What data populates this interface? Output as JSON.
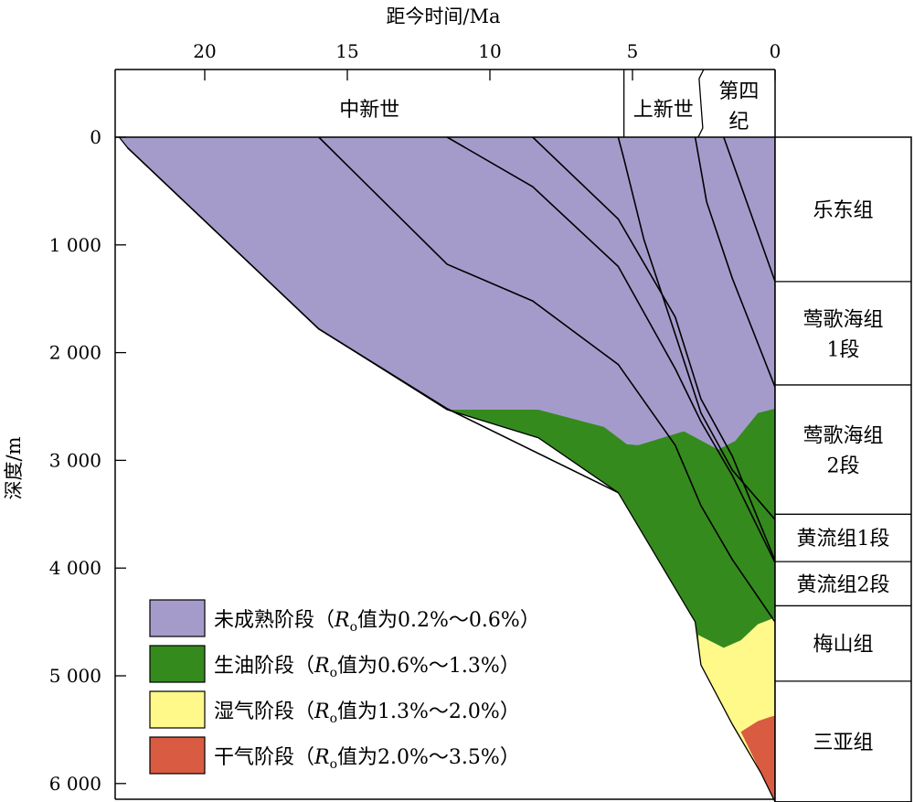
{
  "chart_data": {
    "type": "area",
    "title": "",
    "xlabel": "距今时间/Ma",
    "ylabel": "深度/m",
    "x_range": [
      23,
      0
    ],
    "y_range": [
      0,
      6200
    ],
    "x_ticks": [
      20,
      15,
      10,
      5,
      0
    ],
    "x_tick_labels": [
      "20",
      "15",
      "10",
      "5",
      "0"
    ],
    "y_ticks": [
      0,
      1000,
      2000,
      3000,
      4000,
      5000,
      6000
    ],
    "y_tick_labels": [
      "0",
      "1 000",
      "2 000",
      "3 000",
      "4 000",
      "5 000",
      "6 000"
    ],
    "epochs": [
      {
        "name": "中新世",
        "from_ma": 23,
        "to_ma": 5.3
      },
      {
        "name": "上新世",
        "from_ma": 5.3,
        "to_ma": 2.6
      },
      {
        "name": "第四纪",
        "from_ma": 2.6,
        "to_ma": 0
      }
    ],
    "formations": [
      {
        "name": "乐东组",
        "top_m": 0,
        "bottom_m": 1340
      },
      {
        "name": "莺歌海组1段",
        "top_m": 1340,
        "bottom_m": 2300
      },
      {
        "name": "莺歌海组2段",
        "top_m": 2300,
        "bottom_m": 3500
      },
      {
        "name": "黄流组1段",
        "top_m": 3500,
        "bottom_m": 3940
      },
      {
        "name": "黄流组2段",
        "top_m": 3940,
        "bottom_m": 4350
      },
      {
        "name": "梅山组",
        "top_m": 4350,
        "bottom_m": 5050
      },
      {
        "name": "三亚组",
        "top_m": 5050,
        "bottom_m": 6170
      }
    ],
    "burial_curves": [
      {
        "x": [
          22.7,
          16.0,
          11.5,
          5.5
        ],
        "y": [
          100,
          1780,
          2520,
          3300
        ]
      },
      {
        "x": [
          16.0,
          11.5,
          8.5,
          5.5,
          3.5,
          2.6,
          1.5,
          0
        ],
        "y": [
          0,
          1180,
          1520,
          2110,
          2860,
          3420,
          3920,
          4500
        ]
      },
      {
        "x": [
          11.5,
          8.5,
          5.5,
          3.5,
          2.6,
          1.5,
          0
        ],
        "y": [
          0,
          460,
          1200,
          2150,
          2640,
          3140,
          3950
        ]
      },
      {
        "x": [
          8.5,
          5.5,
          3.5,
          2.6,
          1.5,
          0
        ],
        "y": [
          0,
          760,
          1670,
          2430,
          2960,
          3930
        ]
      },
      {
        "x": [
          5.5,
          5.3,
          4.6,
          3.5,
          2.6,
          1.5,
          0
        ],
        "y": [
          0,
          200,
          950,
          1830,
          2560,
          3090,
          3550
        ]
      },
      {
        "x": [
          2.8,
          2.4,
          1.5,
          0
        ],
        "y": [
          0,
          600,
          1310,
          2320
        ]
      },
      {
        "x": [
          1.8,
          0
        ],
        "y": [
          0,
          1340
        ]
      }
    ],
    "maturity_zones": [
      {
        "name": "未成熟阶段",
        "color": "#A59BCB"
      },
      {
        "name": "生油阶段",
        "color": "#358A1E"
      },
      {
        "name": "湿气阶段",
        "color": "#FFF98A"
      },
      {
        "name": "干气阶段",
        "color": "#D95B41"
      }
    ],
    "zone_boundaries": {
      "oil_window_top": {
        "x": [
          11.5,
          8.3,
          6.0,
          5.2,
          4.8,
          3.2,
          2.0,
          1.4,
          0.6,
          0
        ],
        "y": [
          2530,
          2530,
          2690,
          2850,
          2860,
          2730,
          2900,
          2820,
          2560,
          2520
        ]
      },
      "wet_gas_top": {
        "x": [
          2.7,
          1.8,
          1.2,
          0.6,
          0
        ],
        "y": [
          4620,
          4740,
          4670,
          4520,
          4460
        ]
      },
      "dry_gas_top": {
        "x": [
          1.2,
          0.6,
          0.15,
          0
        ],
        "y": [
          5520,
          5420,
          5380,
          5370
        ]
      }
    },
    "basement": {
      "x": [
        23,
        22.7,
        16.0,
        11.5,
        8.3,
        5.5,
        2.8,
        2.6,
        1.5,
        0.5,
        0
      ],
      "y": [
        0,
        100,
        1780,
        2530,
        2790,
        3300,
        4500,
        4900,
        5450,
        5900,
        6170
      ]
    },
    "legend": {
      "position": "bottom-left",
      "items": [
        {
          "label": "未成熟阶段（",
          "ro": "R",
          "ro_sub": "o",
          "range": "值为0.2%～0.6%）",
          "color": "#A59BCB"
        },
        {
          "label": "生油阶段（",
          "ro": "R",
          "ro_sub": "o",
          "range": "值为0.6%～1.3%）",
          "color": "#358A1E"
        },
        {
          "label": "湿气阶段（",
          "ro": "R",
          "ro_sub": "o",
          "range": "值为1.3%～2.0%）",
          "color": "#FFF98A"
        },
        {
          "label": "干气阶段（",
          "ro": "R",
          "ro_sub": "o",
          "range": "值为2.0%～3.5%）",
          "color": "#D95B41"
        }
      ]
    }
  }
}
